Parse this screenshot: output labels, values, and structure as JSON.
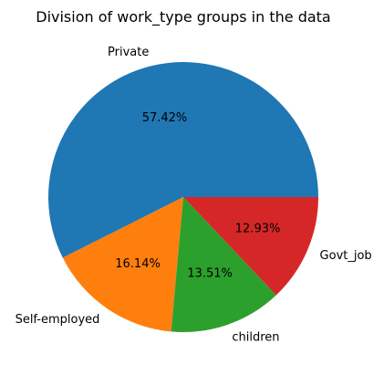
{
  "chart_data": {
    "type": "pie",
    "title": "Division of work_type groups in the data",
    "categories": [
      "Private",
      "Self-employed",
      "children",
      "Govt_job"
    ],
    "values": [
      57.42,
      16.14,
      13.51,
      12.93
    ],
    "percent_labels": [
      "57.42%",
      "16.14%",
      "13.51%",
      "12.93%"
    ],
    "colors": [
      "#1f77b4",
      "#ff7f0e",
      "#2ca02c",
      "#d62728"
    ],
    "start_angle_deg": 0,
    "direction": "counterclockwise"
  }
}
